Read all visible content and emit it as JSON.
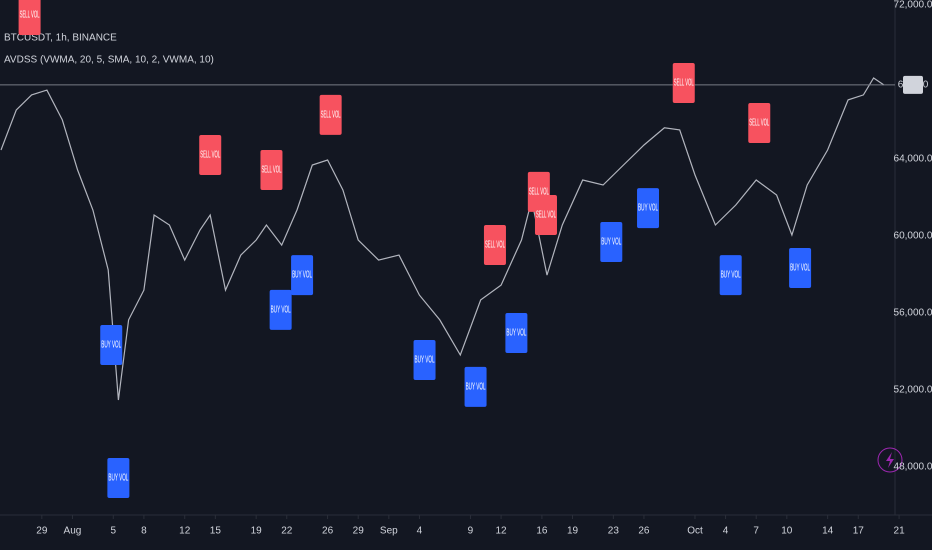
{
  "chart_data": {
    "type": "line",
    "title": "BTCUSDT, 1h, BINANCE",
    "subtitle": "AVDSS (VWMA, 20, 5, SMA, 10, 2, VWMA, 10)",
    "xlim": [
      -4.1,
      83.6
    ],
    "xticks": [
      {
        "value": 0,
        "label": "29"
      },
      {
        "value": 3,
        "label": "Aug"
      },
      {
        "value": 7,
        "label": "5"
      },
      {
        "value": 10,
        "label": "8"
      },
      {
        "value": 14,
        "label": "12"
      },
      {
        "value": 17,
        "label": "15"
      },
      {
        "value": 21,
        "label": "19"
      },
      {
        "value": 24,
        "label": "22"
      },
      {
        "value": 28,
        "label": "26"
      },
      {
        "value": 31,
        "label": "29"
      },
      {
        "value": 34,
        "label": "Sep"
      },
      {
        "value": 37,
        "label": "4"
      },
      {
        "value": 42,
        "label": "9"
      },
      {
        "value": 45,
        "label": "12"
      },
      {
        "value": 49,
        "label": "16"
      },
      {
        "value": 52,
        "label": "19"
      },
      {
        "value": 56,
        "label": "23"
      },
      {
        "value": 59,
        "label": "26"
      },
      {
        "value": 64,
        "label": "Oct"
      },
      {
        "value": 67,
        "label": "4"
      },
      {
        "value": 70,
        "label": "7"
      },
      {
        "value": 73,
        "label": "10"
      },
      {
        "value": 77,
        "label": "14"
      },
      {
        "value": 80,
        "label": "17"
      },
      {
        "value": 84,
        "label": "21"
      }
    ],
    "ylim": [
      45247,
      72260
    ],
    "yticks": [
      {
        "value": 48000,
        "label": "48,000.0"
      },
      {
        "value": 52000,
        "label": "52,000.0"
      },
      {
        "value": 56000,
        "label": "56,000.0"
      },
      {
        "value": 60000,
        "label": "60,000.0"
      },
      {
        "value": 64000,
        "label": "64,000.0"
      },
      {
        "value": 72000,
        "label": "72,000.0"
      }
    ],
    "last_price": {
      "value": 67850,
      "label": "67,850"
    },
    "x": [
      -4,
      -2.5,
      -1,
      0.5,
      2,
      3.5,
      5,
      6.5,
      7.5,
      8.5,
      10,
      11,
      12.5,
      14,
      15.5,
      16.5,
      18,
      19.5,
      21,
      22,
      23.5,
      25,
      26.5,
      28,
      29.5,
      31,
      33,
      35,
      37,
      39,
      41,
      43,
      45,
      47,
      48,
      49.5,
      51,
      53,
      55,
      57,
      59,
      61,
      62.5,
      64,
      66,
      68,
      70,
      72,
      73.5,
      75,
      77,
      79,
      80.5,
      81.5,
      82.5
    ],
    "values": [
      64470,
      66550,
      67330,
      67580,
      66030,
      63430,
      61350,
      58240,
      51480,
      55640,
      57190,
      61090,
      60570,
      58750,
      60310,
      61090,
      57190,
      59010,
      59790,
      60570,
      59530,
      61350,
      63690,
      63950,
      62390,
      59790,
      58750,
      59010,
      56930,
      55640,
      53820,
      56680,
      57450,
      59790,
      61870,
      57970,
      60570,
      62910,
      62650,
      63690,
      64730,
      65620,
      65510,
      63170,
      60570,
      61610,
      62910,
      62130,
      60050,
      62650,
      64470,
      67070,
      67330,
      68210,
      67850
    ],
    "color": "#b2b5be",
    "series": [
      {
        "name": "SELL VOL",
        "color": "#f7525f",
        "x": [
          -1.2,
          16.5,
          22.5,
          28.3,
          44.4,
          48.7,
          49.4,
          62.9,
          70.3
        ],
        "values": [
          71480,
          64210,
          63430,
          66290,
          59530,
          62290,
          61090,
          67950,
          65870
        ]
      },
      {
        "name": "BUY VOL",
        "color": "#2962ff",
        "x": [
          6.8,
          7.5,
          23.4,
          25.5,
          37.5,
          42.5,
          46.5,
          55.8,
          59.4,
          67.5,
          74.3
        ],
        "values": [
          54340,
          47430,
          56160,
          57970,
          53560,
          52160,
          54960,
          59690,
          61450,
          57970,
          58340
        ]
      }
    ]
  }
}
